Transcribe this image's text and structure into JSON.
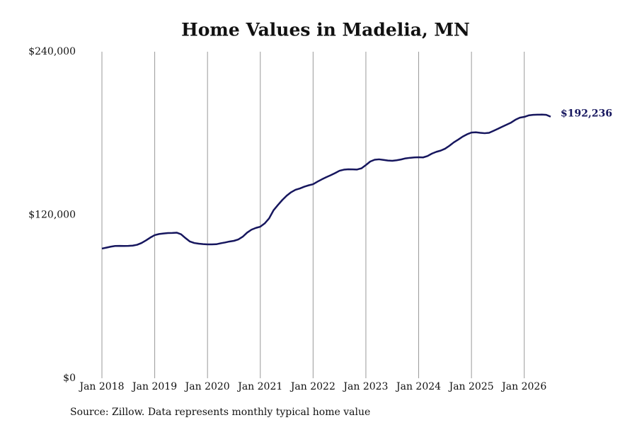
{
  "chart_data": {
    "type": "line",
    "title": "Home Values in Madelia, MN",
    "source": "Source: Zillow. Data represents monthly typical home value",
    "x": [
      "2018-01",
      "2018-02",
      "2018-03",
      "2018-04",
      "2018-05",
      "2018-06",
      "2018-07",
      "2018-08",
      "2018-09",
      "2018-10",
      "2018-11",
      "2018-12",
      "2019-01",
      "2019-02",
      "2019-03",
      "2019-04",
      "2019-05",
      "2019-06",
      "2019-07",
      "2019-08",
      "2019-09",
      "2019-10",
      "2019-11",
      "2019-12",
      "2020-01",
      "2020-02",
      "2020-03",
      "2020-04",
      "2020-05",
      "2020-06",
      "2020-07",
      "2020-08",
      "2020-09",
      "2020-10",
      "2020-11",
      "2020-12",
      "2021-01",
      "2021-02",
      "2021-03",
      "2021-04",
      "2021-05",
      "2021-06",
      "2021-07",
      "2021-08",
      "2021-09",
      "2021-10",
      "2021-11",
      "2021-12",
      "2022-01",
      "2022-02",
      "2022-03",
      "2022-04",
      "2022-05",
      "2022-06",
      "2022-07",
      "2022-08",
      "2022-09",
      "2022-10",
      "2022-11",
      "2022-12",
      "2023-01",
      "2023-02",
      "2023-03",
      "2023-04",
      "2023-05",
      "2023-06",
      "2023-07",
      "2023-08",
      "2023-09",
      "2023-10",
      "2023-11",
      "2023-12",
      "2024-01",
      "2024-02",
      "2024-03",
      "2024-04",
      "2024-05",
      "2024-06",
      "2024-07",
      "2024-08",
      "2024-09",
      "2024-10",
      "2024-11",
      "2024-12",
      "2025-01",
      "2025-02",
      "2025-03",
      "2025-04",
      "2025-05",
      "2025-06",
      "2025-07",
      "2025-08",
      "2025-09",
      "2025-10",
      "2025-11",
      "2025-12",
      "2026-01",
      "2026-02",
      "2026-03",
      "2026-04",
      "2026-05",
      "2026-06",
      "2026-07"
    ],
    "series": [
      {
        "name": "Home value",
        "color": "#16165e",
        "values": [
          95300,
          96000,
          96700,
          97200,
          97300,
          97200,
          97300,
          97500,
          98100,
          99400,
          101300,
          103400,
          105200,
          106000,
          106400,
          106700,
          106800,
          107000,
          105800,
          103000,
          100500,
          99400,
          98900,
          98600,
          98400,
          98400,
          98500,
          99200,
          99800,
          100500,
          101000,
          102000,
          104000,
          107000,
          109200,
          110500,
          111400,
          113800,
          117500,
          123400,
          127300,
          131000,
          134200,
          136700,
          138500,
          139500,
          140800,
          141800,
          142600,
          144500,
          146200,
          147800,
          149200,
          150800,
          152500,
          153300,
          153600,
          153500,
          153400,
          154300,
          156700,
          159300,
          160600,
          160900,
          160500,
          160000,
          159800,
          160200,
          160800,
          161600,
          162000,
          162300,
          162400,
          162300,
          163300,
          165100,
          166400,
          167300,
          168700,
          170900,
          173400,
          175400,
          177600,
          179300,
          180600,
          180800,
          180400,
          180100,
          180400,
          181800,
          183300,
          184900,
          186400,
          187900,
          190000,
          191500,
          192100,
          193200,
          193600,
          193700,
          193800,
          193600,
          192236
        ],
        "value_labels": [
          null,
          null,
          null,
          null,
          null,
          null,
          null,
          null,
          null,
          null,
          null,
          null,
          null,
          null,
          null,
          null,
          null,
          null,
          null,
          null,
          null,
          null,
          null,
          null,
          null,
          null,
          null,
          null,
          null,
          null,
          null,
          null,
          null,
          null,
          null,
          null,
          null,
          null,
          null,
          null,
          null,
          null,
          null,
          null,
          null,
          null,
          null,
          null,
          null,
          null,
          null,
          null,
          null,
          null,
          null,
          null,
          null,
          null,
          null,
          null,
          null,
          null,
          null,
          null,
          null,
          null,
          null,
          null,
          null,
          null,
          null,
          null,
          null,
          null,
          null,
          null,
          null,
          null,
          null,
          null,
          null,
          null,
          null,
          null,
          null,
          null,
          null,
          null,
          null,
          null,
          null,
          null,
          null,
          null,
          null,
          null,
          null,
          null,
          null,
          null,
          null,
          null,
          "$192,236"
        ]
      }
    ],
    "xlim": [
      "2018-01",
      "2026-07"
    ],
    "xticks": [
      {
        "value": "2018-01",
        "label": "Jan 2018"
      },
      {
        "value": "2019-01",
        "label": "Jan 2019"
      },
      {
        "value": "2020-01",
        "label": "Jan 2020"
      },
      {
        "value": "2021-01",
        "label": "Jan 2021"
      },
      {
        "value": "2022-01",
        "label": "Jan 2022"
      },
      {
        "value": "2023-01",
        "label": "Jan 2023"
      },
      {
        "value": "2024-01",
        "label": "Jan 2024"
      },
      {
        "value": "2025-01",
        "label": "Jan 2025"
      },
      {
        "value": "2026-01",
        "label": "Jan 2026"
      }
    ],
    "ylim": [
      0,
      240000
    ],
    "yticks": [
      {
        "value": 0,
        "label": "$0"
      },
      {
        "value": 120000,
        "label": "$120,000"
      },
      {
        "value": 240000,
        "label": "$240,000"
      }
    ],
    "grid": "x"
  }
}
